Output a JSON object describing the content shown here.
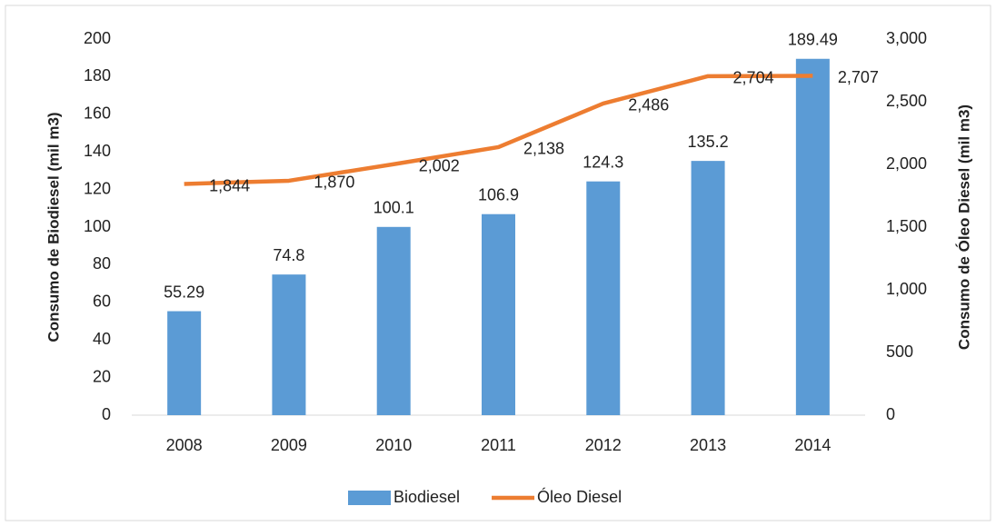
{
  "chart_data": {
    "type": "bar",
    "categories": [
      "2008",
      "2009",
      "2010",
      "2011",
      "2012",
      "2013",
      "2014"
    ],
    "series": [
      {
        "name": "Biodiesel",
        "type": "bar",
        "color": "#5b9bd5",
        "values": [
          55.29,
          74.8,
          100.1,
          106.9,
          124.3,
          135.2,
          189.49
        ]
      },
      {
        "name": "Óleo Diesel",
        "type": "line",
        "axis": "y2",
        "color": "#ed7d31",
        "values": [
          1844,
          1870,
          2002,
          2138,
          2486,
          2704,
          2707
        ],
        "value_labels": [
          "1,844",
          "1,870",
          "2,002",
          "2,138",
          "2,486",
          "2,704",
          "2,707"
        ]
      }
    ],
    "ylabel": "Consumo de Biodiesel  (mil m3)",
    "y2label": "Consumo de Óleo Diesel (mil m3)",
    "ylim": [
      0,
      200
    ],
    "yticks": [
      0,
      20,
      40,
      60,
      80,
      100,
      120,
      140,
      160,
      180,
      200
    ],
    "y2lim": [
      0,
      3000
    ],
    "y2ticks": [
      0,
      500,
      {
        "value": 1000,
        "label": "1,000"
      },
      {
        "value": 1500,
        "label": "1,500"
      },
      {
        "value": 2000,
        "label": "2,000"
      },
      {
        "value": 2500,
        "label": "2,500"
      },
      {
        "value": 3000,
        "label": "3,000"
      }
    ],
    "grid": false,
    "legend": "bottom"
  }
}
